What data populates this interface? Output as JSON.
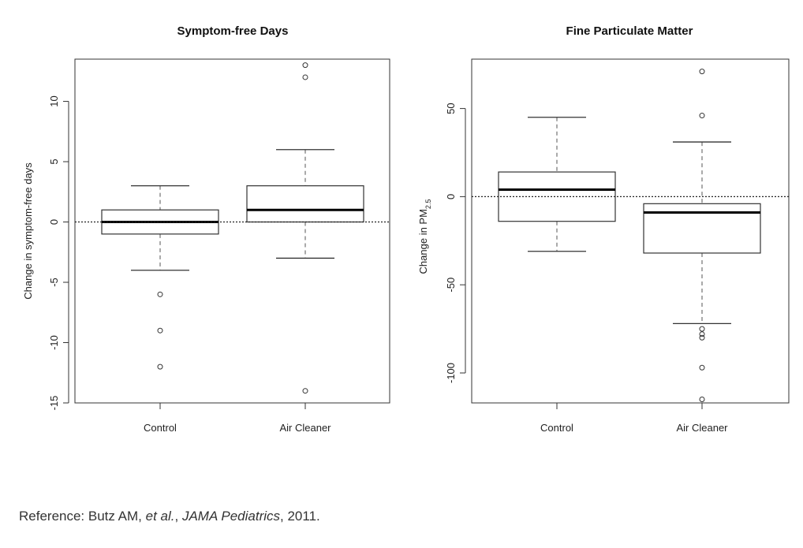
{
  "chart_data": [
    {
      "type": "box",
      "title": "Symptom-free Days",
      "ylabel_main": "Change in symptom-free days",
      "ylabel_sub": "",
      "categories": [
        "Control",
        "Air Cleaner"
      ],
      "ylim": [
        -15,
        13.5
      ],
      "yticks": [
        {
          "v": -15,
          "label": "-15"
        },
        {
          "v": -10,
          "label": "-10"
        },
        {
          "v": -5,
          "label": "-5"
        },
        {
          "v": 0,
          "label": "0"
        },
        {
          "v": 5,
          "label": "5"
        },
        {
          "v": 10,
          "label": "10"
        }
      ],
      "reference_line": 0,
      "boxes": [
        {
          "name": "Control",
          "whisker_low": -4,
          "q1": -1,
          "median": 0,
          "q3": 1,
          "whisker_high": 3,
          "outliers": [
            -6,
            -9,
            -12
          ]
        },
        {
          "name": "Air Cleaner",
          "whisker_low": -3,
          "q1": 0,
          "median": 1,
          "q3": 3,
          "whisker_high": 6,
          "outliers": [
            12,
            13,
            -14
          ]
        }
      ]
    },
    {
      "type": "box",
      "title": "Fine Particulate Matter",
      "ylabel_main": "Change in PM",
      "ylabel_sub": "2.5",
      "categories": [
        "Control",
        "Air Cleaner"
      ],
      "ylim": [
        -117,
        78
      ],
      "yticks": [
        {
          "v": -100,
          "label": "-100"
        },
        {
          "v": -50,
          "label": "-50"
        },
        {
          "v": 0,
          "label": "0"
        },
        {
          "v": 50,
          "label": "50"
        }
      ],
      "reference_line": 0,
      "boxes": [
        {
          "name": "Control",
          "whisker_low": -31,
          "q1": -14,
          "median": 4,
          "q3": 14,
          "whisker_high": 45,
          "outliers": []
        },
        {
          "name": "Air Cleaner",
          "whisker_low": -72,
          "q1": -32,
          "median": -9,
          "q3": -4,
          "whisker_high": 31,
          "outliers": [
            71,
            46,
            -75,
            -78,
            -80,
            -97,
            -115
          ]
        }
      ]
    }
  ],
  "reference": {
    "prefix": "Reference: Butz AM, ",
    "etal": "et al.",
    "comma1": ", ",
    "journal": "JAMA Pediatrics",
    "suffix": ", 2011."
  }
}
